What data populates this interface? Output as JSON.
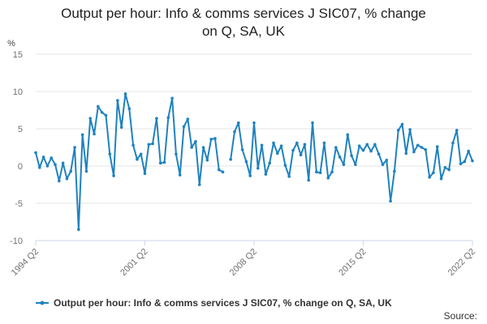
{
  "title_lines": [
    "Output per hour: Info & comms services J SIC07, % change",
    "on Q, SA, UK"
  ],
  "source": "Source:",
  "colors": {
    "series": "#1f82c0",
    "grid": "#e6e6e6",
    "axis": "#ccd6eb",
    "text": "#707070"
  },
  "chart_data": {
    "type": "line",
    "title": "Output per hour: Info & comms services J SIC07, % change on Q, SA, UK",
    "ylabel": "%",
    "xlabel": "",
    "ylim": [
      -10,
      15
    ],
    "yticks": [
      -10,
      -5,
      0,
      5,
      10,
      15
    ],
    "xlim": [
      0,
      112
    ],
    "xticks": [
      {
        "index": 0,
        "label": "1994 Q2"
      },
      {
        "index": 28,
        "label": "2001 Q2"
      },
      {
        "index": 56,
        "label": "2008 Q2"
      },
      {
        "index": 84,
        "label": "2015 Q2"
      },
      {
        "index": 112,
        "label": "2022 Q2"
      }
    ],
    "grid": "horizontal",
    "legend_position": "bottom",
    "series": [
      {
        "name": "Output per hour: Info & comms services J SIC07, % change on Q, SA, UK",
        "values": [
          1.8,
          -0.2,
          1.2,
          0.0,
          1.1,
          0.2,
          -2.0,
          0.4,
          -1.7,
          -0.7,
          2.5,
          -8.5,
          4.2,
          -0.7,
          6.4,
          4.3,
          8.0,
          7.2,
          6.8,
          1.6,
          -1.3,
          8.8,
          5.2,
          9.7,
          7.7,
          2.8,
          0.9,
          1.6,
          -1.0,
          2.9,
          3.0,
          6.4,
          0.4,
          0.5,
          6.5,
          9.1,
          1.6,
          -1.2,
          5.3,
          6.3,
          2.5,
          3.3,
          -2.5,
          2.5,
          0.8,
          3.6,
          3.7,
          -0.5,
          -0.8,
          null,
          0.9,
          4.6,
          5.8,
          2.2,
          0.6,
          -1.3,
          5.8,
          -0.3,
          2.8,
          -1.1,
          0.4,
          3.1,
          1.7,
          2.7,
          0.1,
          -1.4,
          2.1,
          3.1,
          1.5,
          2.9,
          -1.9,
          5.8,
          -0.8,
          -0.9,
          3.1,
          -1.6,
          -0.8,
          2.5,
          1.2,
          0.2,
          4.2,
          1.4,
          0.2,
          2.7,
          2.1,
          2.9,
          2.0,
          2.9,
          1.6,
          0.2,
          0.8,
          -4.7,
          -0.7,
          4.8,
          5.6,
          1.7,
          4.9,
          1.9,
          2.8,
          2.5,
          2.2,
          -1.5,
          -0.9,
          2.6,
          -1.7,
          -0.2,
          -0.5,
          3.1,
          4.8,
          0.3,
          0.6,
          2.0,
          0.7
        ]
      }
    ]
  }
}
